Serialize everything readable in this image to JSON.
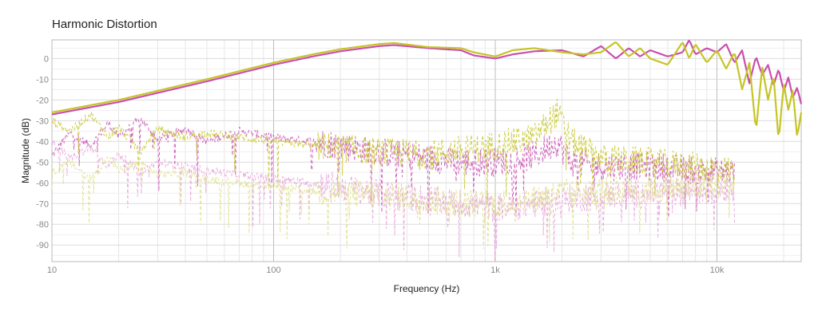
{
  "chart_data": {
    "type": "line",
    "title": "Harmonic Distortion",
    "xlabel": "Frequency (Hz)",
    "ylabel": "Magnitude (dB)",
    "x_scale": "log",
    "xlim": [
      10,
      24000
    ],
    "ylim": [
      -98,
      9
    ],
    "grid": true,
    "legend": "none",
    "x_ticks": [
      {
        "value": 10,
        "label": "10"
      },
      {
        "value": 100,
        "label": "100"
      },
      {
        "value": 1000,
        "label": "1k"
      },
      {
        "value": 10000,
        "label": "10k"
      }
    ],
    "y_ticks": [
      {
        "value": 0,
        "label": "0"
      },
      {
        "value": -10,
        "label": "-10"
      },
      {
        "value": -20,
        "label": "-20"
      },
      {
        "value": -30,
        "label": "-30"
      },
      {
        "value": -40,
        "label": "-40"
      },
      {
        "value": -50,
        "label": "-50"
      },
      {
        "value": -60,
        "label": "-60"
      },
      {
        "value": -70,
        "label": "-70"
      },
      {
        "value": -80,
        "label": "-80"
      },
      {
        "value": -90,
        "label": "-90"
      }
    ],
    "series": [
      {
        "role": "fundamental",
        "color": "#c94fb0",
        "style": "solid",
        "x": [
          10,
          20,
          50,
          100,
          150,
          200,
          300,
          350,
          500,
          700,
          800,
          1000,
          1200,
          1500,
          2000,
          2500,
          3000,
          3500,
          4000,
          4500,
          5000,
          6000,
          7000,
          7500,
          8000,
          9000,
          10000,
          11000,
          12000,
          13000,
          14000,
          15000,
          16000,
          17000,
          18000,
          19000,
          20000,
          21000,
          22000,
          23000,
          24000
        ],
        "y": [
          -27,
          -21,
          -11,
          -3,
          1,
          3.5,
          6,
          6.5,
          5,
          4,
          1.5,
          0,
          2,
          3.5,
          4,
          1,
          6,
          0,
          5,
          1,
          4,
          1,
          3,
          9,
          2,
          5,
          3,
          7,
          -2,
          4,
          -12,
          1,
          -8,
          -3,
          -13,
          -5,
          -16,
          -9,
          -19,
          -14,
          -22
        ]
      },
      {
        "role": "fundamental",
        "color": "#c5c525",
        "style": "solid",
        "x": [
          10,
          20,
          50,
          100,
          150,
          200,
          300,
          350,
          500,
          700,
          800,
          1000,
          1200,
          1500,
          2000,
          2500,
          3000,
          3500,
          4000,
          4500,
          5000,
          6000,
          7000,
          7500,
          8000,
          9000,
          10000,
          11000,
          12000,
          13000,
          14000,
          15000,
          16000,
          17000,
          18000,
          19000,
          20000,
          21000,
          22000,
          23000,
          24000
        ],
        "y": [
          -26,
          -20,
          -10,
          -2,
          2,
          4.5,
          7,
          7.5,
          5.5,
          5,
          3,
          1,
          4,
          5,
          3,
          2,
          3,
          8,
          1,
          5,
          0,
          -3,
          8,
          0,
          7,
          -2,
          4,
          -5,
          3,
          -15,
          -2,
          -35,
          -4,
          -20,
          -8,
          -40,
          -12,
          -25,
          -15,
          -38,
          -26
        ]
      },
      {
        "role": "harmonic",
        "color": "#c94fb0",
        "style": "dashed",
        "x": [
          10,
          12,
          15,
          18,
          20,
          25,
          30,
          40,
          50,
          70,
          100,
          150,
          200,
          300,
          500,
          700,
          1000,
          1500,
          1900,
          2200,
          3000,
          5000,
          8000,
          12000
        ],
        "y": [
          -47,
          -36,
          -42,
          -31,
          -38,
          -29,
          -39,
          -34,
          -40,
          -35,
          -38,
          -40,
          -42,
          -45,
          -48,
          -50,
          -50,
          -47,
          -40,
          -50,
          -52,
          -52,
          -54,
          -55
        ]
      },
      {
        "role": "harmonic",
        "color": "#c5c525",
        "style": "dashed",
        "x": [
          10,
          12,
          15,
          18,
          20,
          25,
          30,
          40,
          50,
          70,
          100,
          150,
          200,
          300,
          500,
          700,
          1000,
          1500,
          1900,
          2200,
          3000,
          5000,
          8000,
          12000
        ],
        "y": [
          -30,
          -35,
          -27,
          -38,
          -33,
          -45,
          -34,
          -38,
          -36,
          -38,
          -40,
          -42,
          -43,
          -45,
          -46,
          -44,
          -42,
          -38,
          -26,
          -40,
          -48,
          -50,
          -52,
          -54
        ]
      },
      {
        "role": "harmonic",
        "color": "#e6a3d9",
        "style": "dashed",
        "x": [
          10,
          12,
          15,
          18,
          20,
          25,
          30,
          40,
          50,
          70,
          100,
          150,
          200,
          300,
          500,
          700,
          1000,
          1500,
          2000,
          3000,
          5000,
          8000,
          12000
        ],
        "y": [
          -40,
          -48,
          -43,
          -52,
          -46,
          -55,
          -50,
          -52,
          -54,
          -56,
          -58,
          -60,
          -62,
          -65,
          -68,
          -70,
          -72,
          -70,
          -68,
          -66,
          -65,
          -64,
          -62
        ]
      },
      {
        "role": "harmonic",
        "color": "#dede8a",
        "style": "dashed",
        "x": [
          10,
          12,
          15,
          18,
          20,
          25,
          30,
          40,
          50,
          70,
          100,
          150,
          200,
          300,
          500,
          700,
          1000,
          1500,
          2000,
          3000,
          5000,
          8000,
          12000
        ],
        "y": [
          -55,
          -50,
          -58,
          -48,
          -54,
          -50,
          -56,
          -55,
          -58,
          -60,
          -62,
          -64,
          -65,
          -66,
          -68,
          -70,
          -70,
          -68,
          -65,
          -64,
          -63,
          -62,
          -60
        ]
      }
    ]
  }
}
